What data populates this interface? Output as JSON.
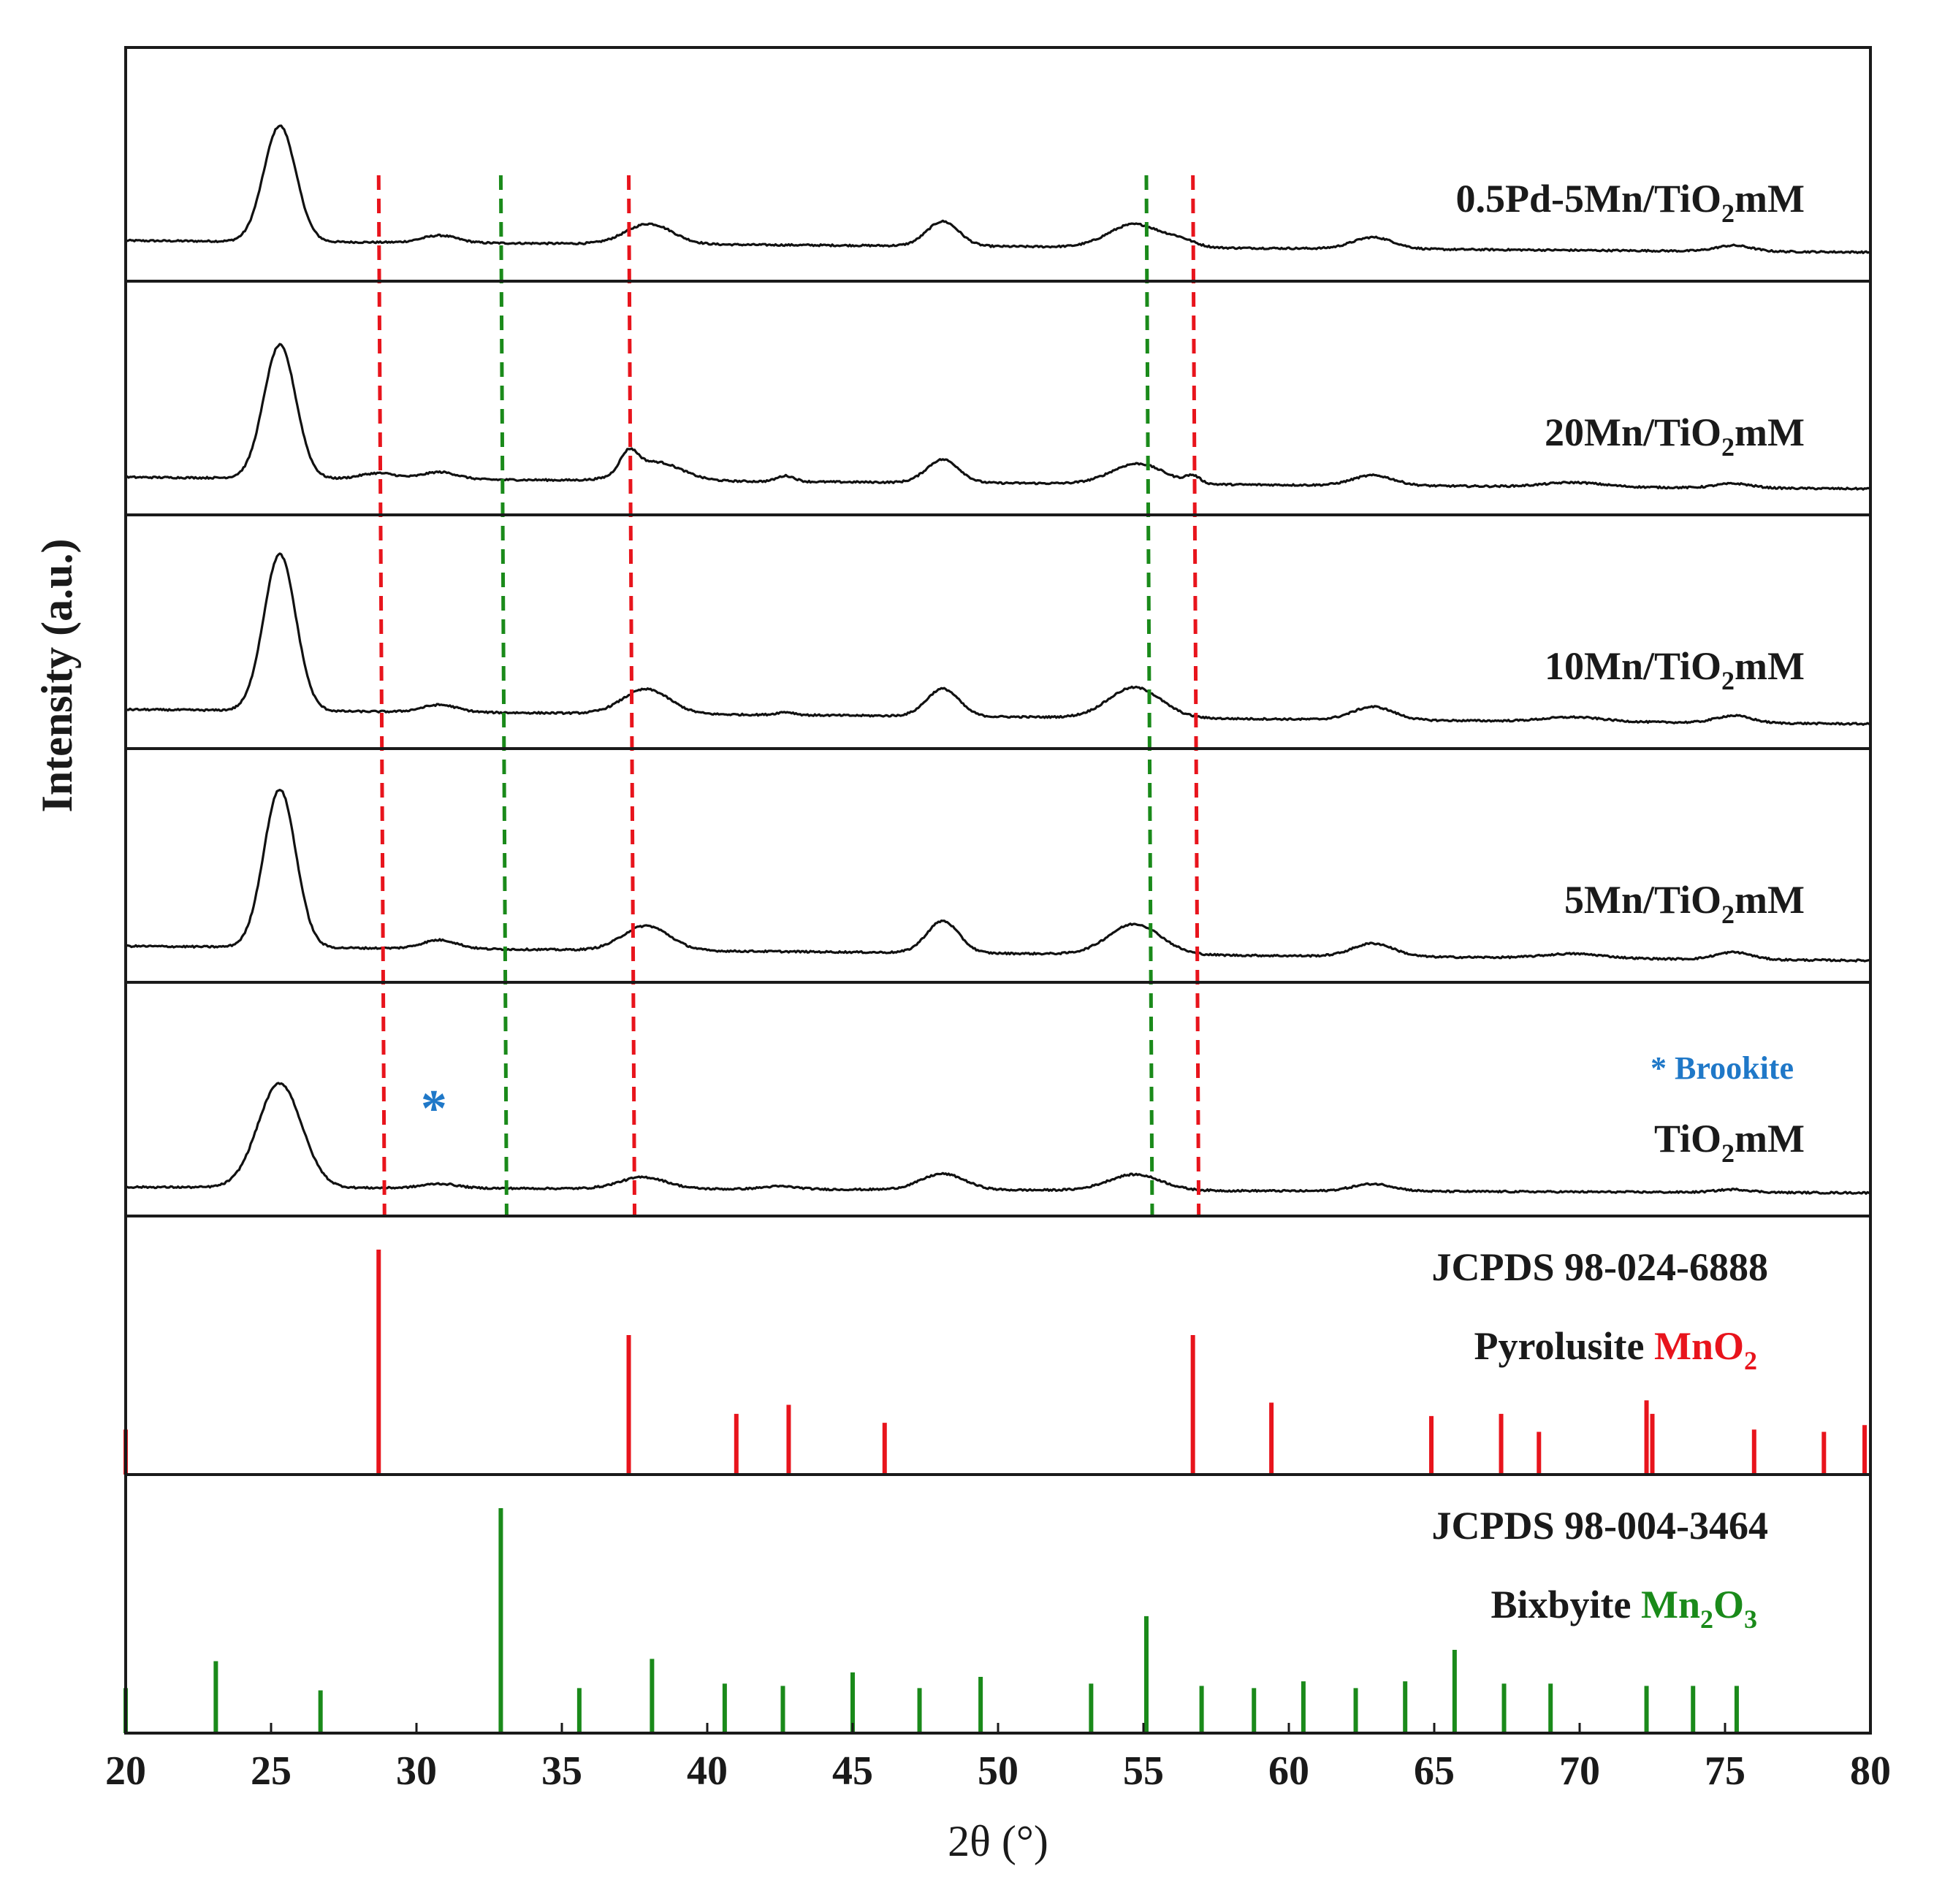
{
  "chart_data": {
    "type": "line",
    "xlabel": "2θ (°)",
    "ylabel": "Intensity (a.u.)",
    "xlim": [
      20,
      80
    ],
    "x_ticks": [
      "20",
      "25",
      "30",
      "35",
      "40",
      "45",
      "50",
      "55",
      "60",
      "65",
      "70",
      "75",
      "80"
    ],
    "colors": {
      "trace": "#111111",
      "mno2": "#e8141c",
      "mn2o3": "#1a8a1a",
      "brookite": "#1f78c8",
      "frame": "#1a1a1a"
    },
    "series": [
      {
        "name": "0.5Pd-5Mn/TiO2mM",
        "label_pre": "0.5Pd-5Mn/TiO",
        "label_sub": "2",
        "label_post": "mM",
        "baseline": 0.24,
        "slope": 0.08,
        "peaks": [
          [
            25.3,
            0.8,
            0.55
          ],
          [
            30.8,
            0.05,
            0.6
          ],
          [
            38.0,
            0.14,
            0.8
          ],
          [
            48.1,
            0.17,
            0.55
          ],
          [
            54.7,
            0.16,
            0.9
          ],
          [
            56.3,
            0.04,
            0.5
          ],
          [
            62.9,
            0.08,
            0.7
          ],
          [
            75.3,
            0.04,
            0.6
          ]
        ]
      },
      {
        "name": "20Mn/TiO2mM",
        "label_pre": "20Mn/TiO",
        "label_sub": "2",
        "label_post": "mM",
        "baseline": 0.22,
        "slope": 0.08,
        "peaks": [
          [
            25.3,
            0.92,
            0.55
          ],
          [
            28.7,
            0.04,
            0.6
          ],
          [
            30.8,
            0.05,
            0.6
          ],
          [
            37.3,
            0.14,
            0.3
          ],
          [
            38.2,
            0.13,
            0.9
          ],
          [
            42.7,
            0.04,
            0.3
          ],
          [
            48.1,
            0.16,
            0.55
          ],
          [
            54.8,
            0.14,
            0.9
          ],
          [
            56.7,
            0.05,
            0.25
          ],
          [
            62.9,
            0.07,
            0.7
          ],
          [
            69.8,
            0.03,
            1.0
          ],
          [
            75.3,
            0.03,
            0.6
          ]
        ]
      },
      {
        "name": "10Mn/TiO2mM",
        "label_pre": "10Mn/TiO",
        "label_sub": "2",
        "label_post": "mM",
        "baseline": 0.22,
        "slope": 0.1,
        "peaks": [
          [
            25.3,
            1.08,
            0.55
          ],
          [
            30.8,
            0.05,
            0.6
          ],
          [
            37.9,
            0.17,
            0.8
          ],
          [
            42.7,
            0.02,
            0.3
          ],
          [
            48.1,
            0.19,
            0.55
          ],
          [
            54.7,
            0.21,
            0.9
          ],
          [
            62.9,
            0.09,
            0.7
          ],
          [
            69.8,
            0.03,
            1.0
          ],
          [
            75.3,
            0.05,
            0.6
          ]
        ]
      },
      {
        "name": "5Mn/TiO2mM",
        "label_pre": "5Mn/TiO",
        "label_sub": "2",
        "label_post": "mM",
        "baseline": 0.2,
        "slope": 0.1,
        "peaks": [
          [
            25.3,
            1.09,
            0.55
          ],
          [
            30.8,
            0.06,
            0.6
          ],
          [
            37.9,
            0.17,
            0.8
          ],
          [
            48.1,
            0.22,
            0.55
          ],
          [
            54.7,
            0.21,
            0.9
          ],
          [
            62.9,
            0.09,
            0.7
          ],
          [
            69.8,
            0.03,
            1.0
          ],
          [
            75.3,
            0.05,
            0.6
          ]
        ]
      },
      {
        "name": "TiO2mM",
        "label_pre": "TiO",
        "label_sub": "2",
        "label_post": "mM",
        "baseline": 0.18,
        "slope": 0.04,
        "peaks": [
          [
            25.3,
            0.72,
            0.75
          ],
          [
            30.8,
            0.03,
            0.6
          ],
          [
            37.8,
            0.08,
            0.8
          ],
          [
            42.5,
            0.02,
            0.6
          ],
          [
            48.1,
            0.11,
            0.75
          ],
          [
            54.7,
            0.11,
            0.9
          ],
          [
            62.9,
            0.05,
            0.7
          ],
          [
            75.3,
            0.02,
            0.6
          ]
        ]
      }
    ],
    "reference_lines": [
      {
        "phase": "MnO2",
        "color": "red",
        "x": [
          28.7,
          37.3,
          56.7
        ]
      },
      {
        "phase": "Mn2O3",
        "color": "green",
        "x": [
          32.9,
          55.1
        ]
      }
    ],
    "annotation": {
      "marker": "*",
      "text": "Brookite",
      "marker_x": 30.6,
      "marker_y": 0.42
    },
    "references": [
      {
        "card": "JCPDS 98-024-6888",
        "mineral": "Pyrolusite",
        "formula_main": "MnO",
        "formula_sub": "2",
        "formula_tail": "",
        "color": "red",
        "sticks": [
          [
            20.0,
            0.2
          ],
          [
            28.7,
            1.0
          ],
          [
            37.3,
            0.62
          ],
          [
            41.0,
            0.27
          ],
          [
            42.8,
            0.31
          ],
          [
            46.1,
            0.23
          ],
          [
            56.7,
            0.62
          ],
          [
            59.4,
            0.32
          ],
          [
            64.9,
            0.26
          ],
          [
            67.3,
            0.27
          ],
          [
            68.6,
            0.19
          ],
          [
            72.3,
            0.33
          ],
          [
            72.5,
            0.27
          ],
          [
            76.0,
            0.2
          ],
          [
            78.4,
            0.19
          ],
          [
            79.8,
            0.22
          ]
        ]
      },
      {
        "card": "JCPDS 98-004-3464",
        "mineral": "Bixbyite",
        "formula_main": "Mn",
        "formula_sub": "2",
        "formula_tail": "O",
        "formula_sub2": "3",
        "color": "green",
        "sticks": [
          [
            20.0,
            0.2
          ],
          [
            23.1,
            0.32
          ],
          [
            26.7,
            0.19
          ],
          [
            32.9,
            1.0
          ],
          [
            35.6,
            0.2
          ],
          [
            38.1,
            0.33
          ],
          [
            40.6,
            0.22
          ],
          [
            42.6,
            0.21
          ],
          [
            45.0,
            0.27
          ],
          [
            47.3,
            0.2
          ],
          [
            49.4,
            0.25
          ],
          [
            53.2,
            0.22
          ],
          [
            55.1,
            0.52
          ],
          [
            57.0,
            0.21
          ],
          [
            58.8,
            0.2
          ],
          [
            60.5,
            0.23
          ],
          [
            62.3,
            0.2
          ],
          [
            64.0,
            0.23
          ],
          [
            65.7,
            0.37
          ],
          [
            67.4,
            0.22
          ],
          [
            69.0,
            0.22
          ],
          [
            72.3,
            0.21
          ],
          [
            73.9,
            0.21
          ],
          [
            75.4,
            0.21
          ]
        ]
      }
    ]
  }
}
